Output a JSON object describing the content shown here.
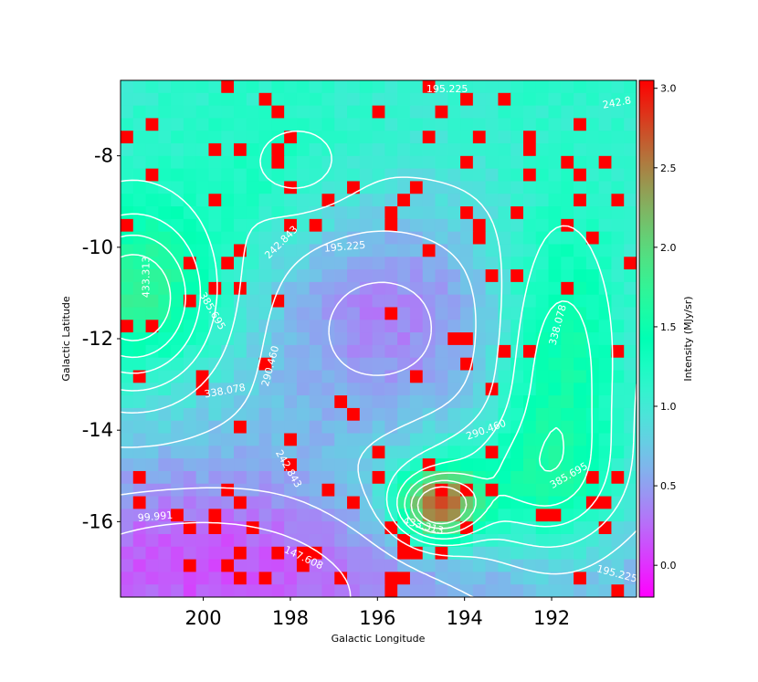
{
  "chart_data": {
    "type": "heatmap",
    "title": "",
    "xlabel": "Galactic Longitude",
    "ylabel": "Galactic Latitude",
    "colorbar_label": "Intensity (MJy/sr)",
    "colormap": "rainbow",
    "xlim": [
      201.9,
      190.05
    ],
    "ylim": [
      -17.65,
      -6.35
    ],
    "vmin": -0.2,
    "vmax": 3.05,
    "x_ticks": [
      200,
      198,
      196,
      194,
      192
    ],
    "x_tick_labels": [
      "200",
      "198",
      "196",
      "194",
      "192"
    ],
    "y_ticks": [
      -8,
      -10,
      -12,
      -14,
      -16
    ],
    "y_tick_labels": [
      "-8",
      "-10",
      "-12",
      "-14",
      "-16"
    ],
    "colorbar_ticks": [
      0.0,
      0.5,
      1.0,
      1.5,
      2.0,
      2.5,
      3.0
    ],
    "colorbar_tick_labels": [
      "0.0",
      "0.5",
      "1.0",
      "1.5",
      "2.0",
      "2.5",
      "3.0"
    ],
    "grid": false,
    "contour_color": "#ffffff",
    "contour_levels": [
      99.991,
      147.608,
      195.225,
      242.843,
      290.46,
      338.078,
      385.695,
      433.313
    ],
    "contour_labels": [
      {
        "text": "195.225",
        "lon": 194.4,
        "lat": -6.55,
        "rot": 0
      },
      {
        "text": "242.8",
        "lon": 190.5,
        "lat": -6.85,
        "rot": -10
      },
      {
        "text": "195.225",
        "lon": 196.75,
        "lat": -10.0,
        "rot": -5
      },
      {
        "text": "242.843",
        "lon": 198.2,
        "lat": -9.9,
        "rot": -45
      },
      {
        "text": "433.313",
        "lon": 201.3,
        "lat": -10.65,
        "rot": -90
      },
      {
        "text": "385.695",
        "lon": 199.8,
        "lat": -11.4,
        "rot": 60
      },
      {
        "text": "338.078",
        "lon": 191.85,
        "lat": -11.7,
        "rot": -75
      },
      {
        "text": "290.460",
        "lon": 198.45,
        "lat": -12.6,
        "rot": -75
      },
      {
        "text": "338.078",
        "lon": 199.5,
        "lat": -13.15,
        "rot": -10
      },
      {
        "text": "290.460",
        "lon": 193.5,
        "lat": -14.0,
        "rot": -20
      },
      {
        "text": "242.843",
        "lon": 198.05,
        "lat": -14.85,
        "rot": 60
      },
      {
        "text": "385.695",
        "lon": 191.6,
        "lat": -15.0,
        "rot": -30
      },
      {
        "text": "99.991",
        "lon": 201.1,
        "lat": -15.9,
        "rot": -5
      },
      {
        "text": "433.313",
        "lon": 194.95,
        "lat": -16.1,
        "rot": 15
      },
      {
        "text": "147.608",
        "lon": 197.7,
        "lat": -16.8,
        "rot": 25
      },
      {
        "text": "195.225",
        "lon": 190.5,
        "lat": -17.15,
        "rot": 15
      }
    ],
    "saturated_color": "#ff0000",
    "description_of_field": "smooth background rising from ~0.2 (south-west) to ~2.5 near (194.5,-15.6), with green ridges along lon ~192 and lon ~201; scattered saturated red pixels"
  }
}
